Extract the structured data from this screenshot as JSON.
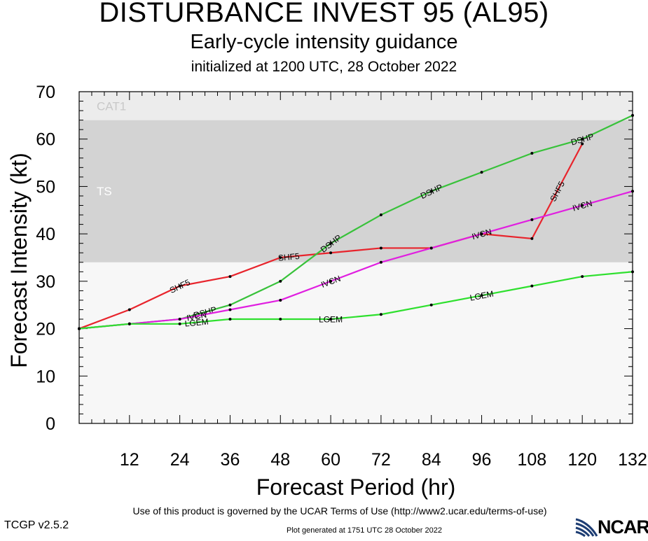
{
  "header": {
    "title": "DISTURBANCE INVEST 95 (AL95)",
    "subtitle": "Early-cycle intensity guidance",
    "initialized": "initialized at 1200 UTC, 28 October 2022"
  },
  "footer": {
    "terms": "Use of this product is governed by the UCAR Terms of Use (http://www2.ucar.edu/terms-of-use)",
    "generated": "Plot generated at 1751 UTC   28 October 2022",
    "version": "TCGP v2.5.2",
    "logo": "NCAR"
  },
  "chart_data": {
    "type": "line",
    "xlabel": "Forecast Period (hr)",
    "ylabel": "Forecast Intensity (kt)",
    "xlim": [
      0,
      132
    ],
    "ylim": [
      0,
      70
    ],
    "xticks": [
      "12",
      "24",
      "36",
      "48",
      "60",
      "72",
      "84",
      "96",
      "108",
      "120",
      "132"
    ],
    "yticks": [
      "0",
      "10",
      "20",
      "30",
      "40",
      "50",
      "60",
      "70"
    ],
    "bands": [
      {
        "name": "TS",
        "from": 34,
        "to": 64,
        "color": "#d3d3d3"
      },
      {
        "name": "CAT1",
        "from": 64,
        "to": 70,
        "color": "#ececec"
      }
    ],
    "series": [
      {
        "name": "SHF5",
        "color": "#e8242c",
        "label_at": [
          24,
          50,
          114
        ],
        "x": [
          0,
          12,
          24,
          36,
          48,
          60,
          72,
          84,
          96,
          108,
          120
        ],
        "y": [
          20,
          24,
          29,
          31,
          35,
          36,
          37,
          37,
          40,
          39,
          59
        ]
      },
      {
        "name": "DSHP",
        "color": "#38c23a",
        "label_at": [
          30,
          60,
          84,
          120
        ],
        "x": [
          0,
          12,
          24,
          36,
          48,
          60,
          72,
          84,
          96,
          108,
          120,
          132
        ],
        "y": [
          20,
          21,
          22,
          25,
          30,
          38,
          44,
          49,
          53,
          57,
          60,
          65
        ]
      },
      {
        "name": "IVCN",
        "color": "#e01fe0",
        "label_at": [
          28,
          60,
          96,
          120
        ],
        "x": [
          0,
          12,
          24,
          36,
          48,
          60,
          72,
          84,
          96,
          108,
          120,
          132
        ],
        "y": [
          20,
          21,
          22,
          24,
          26,
          30,
          34,
          37,
          40,
          43,
          46,
          49
        ]
      },
      {
        "name": "LGEM",
        "color": "#2ee02e",
        "label_at": [
          28,
          60,
          96
        ],
        "x": [
          0,
          12,
          24,
          36,
          48,
          60,
          72,
          84,
          96,
          108,
          120,
          132
        ],
        "y": [
          20,
          21,
          21,
          22,
          22,
          22,
          23,
          25,
          27,
          29,
          31,
          32
        ]
      }
    ]
  }
}
